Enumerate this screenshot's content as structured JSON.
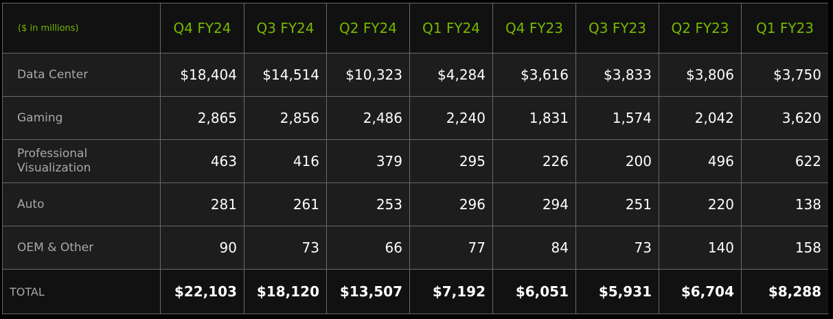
{
  "chart_data": {
    "type": "table",
    "units_label": "($ in millions)",
    "columns": [
      "Q4 FY24",
      "Q3 FY24",
      "Q2 FY24",
      "Q1 FY24",
      "Q4 FY23",
      "Q3 FY23",
      "Q2 FY23",
      "Q1 FY23"
    ],
    "rows": [
      {
        "label": "Data Center",
        "values": [
          "$18,404",
          "$14,514",
          "$10,323",
          "$4,284",
          "$3,616",
          "$3,833",
          "$3,806",
          "$3,750"
        ]
      },
      {
        "label": "Gaming",
        "values": [
          "2,865",
          "2,856",
          "2,486",
          "2,240",
          "1,831",
          "1,574",
          "2,042",
          "3,620"
        ]
      },
      {
        "label": "Professional Visualization",
        "values": [
          "463",
          "416",
          "379",
          "295",
          "226",
          "200",
          "496",
          "622"
        ]
      },
      {
        "label": "Auto",
        "values": [
          "281",
          "261",
          "253",
          "296",
          "294",
          "251",
          "220",
          "138"
        ]
      },
      {
        "label": "OEM & Other",
        "values": [
          "90",
          "73",
          "66",
          "77",
          "84",
          "73",
          "140",
          "158"
        ]
      }
    ],
    "total": {
      "label": "TOTAL",
      "values": [
        "$22,103",
        "$18,120",
        "$13,507",
        "$7,192",
        "$6,051",
        "$5,931",
        "$6,704",
        "$8,288"
      ]
    }
  },
  "colors": {
    "header_text": "#76b900",
    "label_text": "#a9a9a9",
    "value_text": "#ffffff",
    "grid": "#6a6a6a"
  }
}
